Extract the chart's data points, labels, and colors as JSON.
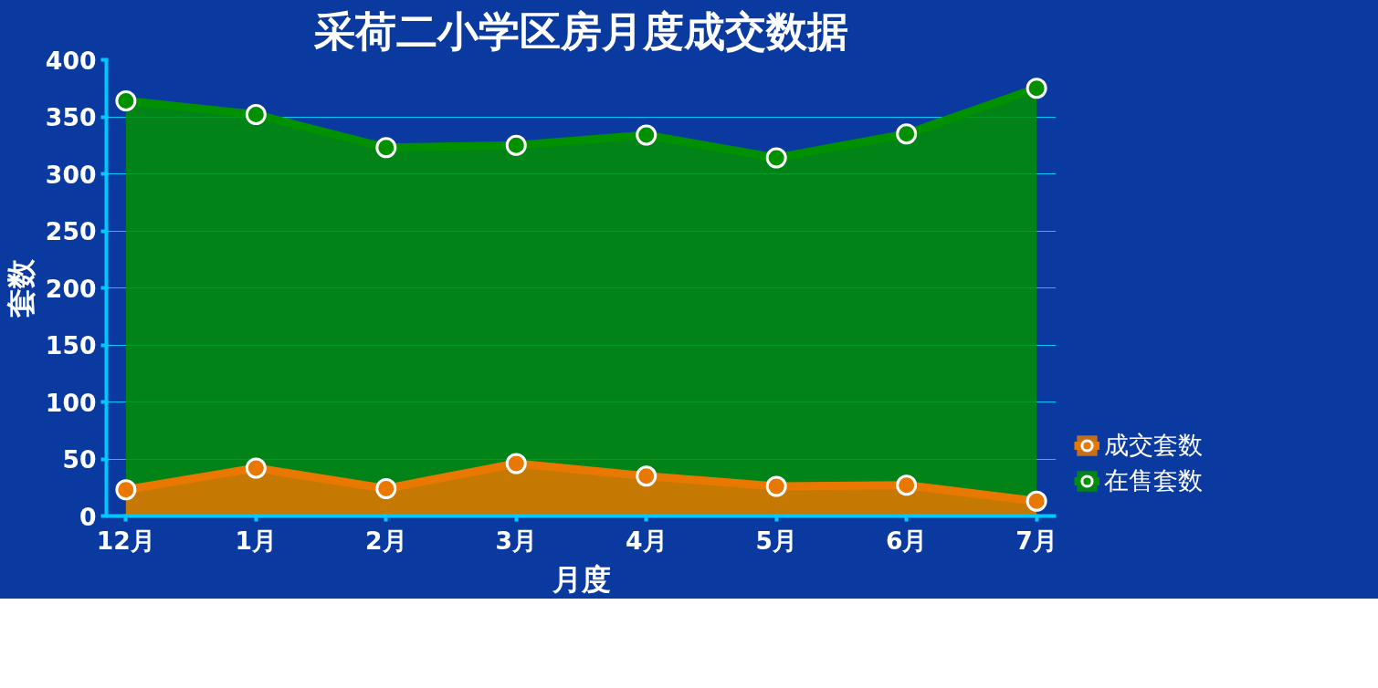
{
  "chart_data": {
    "type": "area",
    "title": "采荷二小学区房月度成交数据",
    "xlabel": "月度",
    "ylabel": "套数",
    "categories": [
      "12月",
      "1月",
      "2月",
      "3月",
      "4月",
      "5月",
      "6月",
      "7月"
    ],
    "series": [
      {
        "name": "成交套数",
        "color": "#e87800",
        "values": [
          23,
          42,
          24,
          46,
          35,
          26,
          27,
          13
        ]
      },
      {
        "name": "在售套数",
        "color": "#009000",
        "values": [
          364,
          352,
          323,
          325,
          334,
          314,
          335,
          375
        ]
      }
    ],
    "ylim": [
      0,
      400
    ],
    "yticks": [
      0,
      50,
      100,
      150,
      200,
      250,
      300,
      350,
      400
    ],
    "grid": "y",
    "legend": "right",
    "marker": "circle",
    "line_style": "solid"
  }
}
